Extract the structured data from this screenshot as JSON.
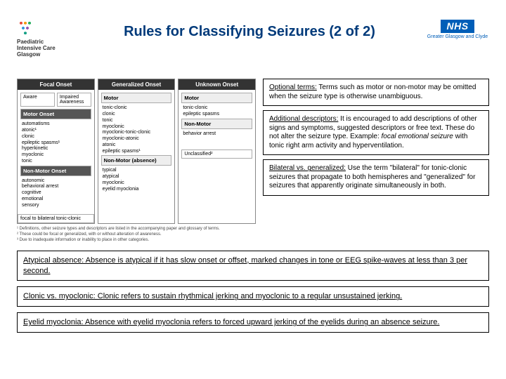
{
  "header": {
    "left_logo_lines": [
      "Paediatric",
      "Intensive Care",
      "Glasgow"
    ],
    "title": "Rules for Classifying Seizures (2 of 2)",
    "nhs": "NHS",
    "nhs_sub": "Greater Glasgow and Clyde"
  },
  "chart": {
    "columns": [
      {
        "head": "Focal Onset",
        "rows": [
          {
            "type": "pair",
            "cells": [
              "Aware",
              "Impaired Awareness"
            ]
          },
          {
            "type": "subhead_dark",
            "text": "Motor Onset"
          },
          {
            "type": "list",
            "items": [
              "automatisms",
              "atonic¹",
              "clonic",
              "epileptic spasms¹",
              "hyperkinetic",
              "myoclonic",
              "tonic"
            ]
          },
          {
            "type": "subhead_dark",
            "text": "Non-Motor Onset"
          },
          {
            "type": "list",
            "items": [
              "autonomic",
              "behavioral arrest",
              "cognitive",
              "emotional",
              "sensory"
            ]
          }
        ],
        "footbar": "focal to bilateral tonic-clonic"
      },
      {
        "head": "Generalized Onset",
        "rows": [
          {
            "type": "subhead",
            "text": "Motor"
          },
          {
            "type": "list",
            "items": [
              "tonic-clonic",
              "clonic",
              "tonic",
              "myoclonic",
              "myoclonic-tonic-clonic",
              "myoclonic-atonic",
              "atonic",
              "epileptic spasms¹"
            ]
          },
          {
            "type": "subhead",
            "text": "Non-Motor (absence)"
          },
          {
            "type": "list",
            "items": [
              "typical",
              "atypical",
              "myoclonic",
              "eyelid myoclonia"
            ]
          }
        ]
      },
      {
        "head": "Unknown Onset",
        "rows": [
          {
            "type": "subhead",
            "text": "Motor"
          },
          {
            "type": "list",
            "items": [
              "tonic-clonic",
              "epileptic spasms"
            ]
          },
          {
            "type": "subhead",
            "text": "Non-Motor"
          },
          {
            "type": "list",
            "items": [
              "behavior arrest"
            ]
          },
          {
            "type": "spacer"
          },
          {
            "type": "box",
            "text": "Unclassified²"
          }
        ]
      }
    ],
    "footnotes": [
      "¹ Definitions, other seizure types and descriptors are listed in the accompanying paper and glossary of terms.",
      "² These could be focal or generalized, with or without alteration of awareness.",
      "³ Due to inadequate information or inability to place in other categories."
    ]
  },
  "right_boxes": [
    {
      "lead": "Optional terms:",
      "body": " Terms such as motor or non-motor may be omitted when the seizure type is otherwise unambiguous."
    },
    {
      "lead": "Additional descriptors:",
      "body": " It is encouraged to add descriptions of other signs and symptoms, suggested descriptors or free text. These do not alter the seizure type. Example: ",
      "italic": "focal emotional seizure",
      "body2": " with tonic right arm activity and hyperventilation."
    },
    {
      "lead": "Bilateral vs. generalized:",
      "body": " Use the term \"bilateral\" for tonic-clonic seizures that propagate to both hemispheres and \"generalized\" for seizures that apparently originate simultaneously in both."
    }
  ],
  "lower_boxes": [
    "Atypical absence: Absence is atypical if it has slow onset or offset, marked changes in tone or EEG spike-waves at less than 3 per second.",
    "Clonic vs. myoclonic: Clonic refers to sustain rhythmical jerking and myoclonic to a regular unsustained jerking.",
    "Eyelid myoclonia: Absence with eyelid myoclonia refers to forced upward jerking of the eyelids during an absence seizure."
  ]
}
